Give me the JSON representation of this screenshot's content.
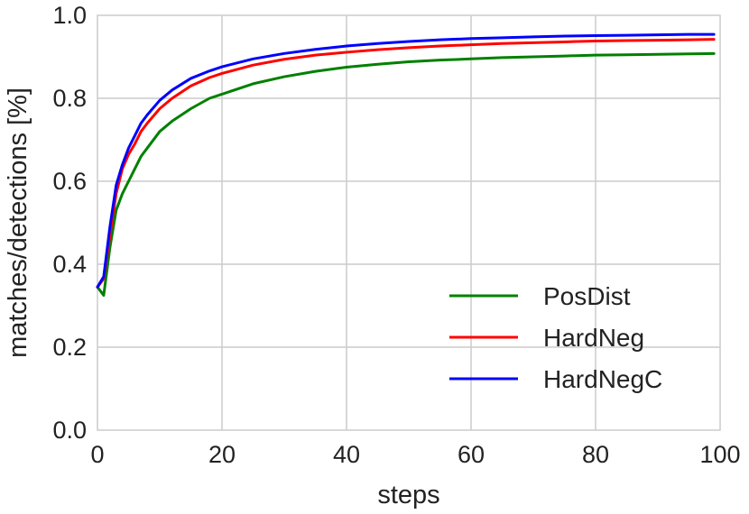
{
  "chart_data": {
    "type": "line",
    "title": "",
    "xlabel": "steps",
    "ylabel": "matches/detections [%]",
    "xlim": [
      0,
      100
    ],
    "ylim": [
      0.0,
      1.0
    ],
    "x_ticks": [
      0,
      20,
      40,
      60,
      80,
      100
    ],
    "y_ticks": [
      0.0,
      0.2,
      0.4,
      0.6,
      0.8,
      1.0
    ],
    "x_tick_labels": [
      "0",
      "20",
      "40",
      "60",
      "80",
      "100"
    ],
    "y_tick_labels": [
      "0.0",
      "0.2",
      "0.4",
      "0.6",
      "0.8",
      "1.0"
    ],
    "grid": true,
    "legend_position": "bottom-right",
    "x": [
      0,
      1,
      2,
      3,
      4,
      5,
      6,
      7,
      8,
      10,
      12,
      15,
      18,
      20,
      25,
      30,
      35,
      40,
      45,
      50,
      55,
      60,
      65,
      70,
      75,
      80,
      85,
      90,
      95,
      99
    ],
    "series": [
      {
        "name": "PosDist",
        "color": "#008000",
        "values": [
          0.345,
          0.325,
          0.44,
          0.53,
          0.57,
          0.6,
          0.63,
          0.66,
          0.68,
          0.72,
          0.745,
          0.775,
          0.8,
          0.81,
          0.835,
          0.852,
          0.865,
          0.875,
          0.882,
          0.888,
          0.892,
          0.895,
          0.898,
          0.9,
          0.902,
          0.904,
          0.905,
          0.906,
          0.907,
          0.908
        ]
      },
      {
        "name": "HardNeg",
        "color": "#ff0000",
        "values": [
          0.345,
          0.365,
          0.47,
          0.57,
          0.63,
          0.665,
          0.69,
          0.72,
          0.74,
          0.775,
          0.8,
          0.83,
          0.85,
          0.86,
          0.88,
          0.894,
          0.904,
          0.911,
          0.917,
          0.922,
          0.926,
          0.929,
          0.932,
          0.934,
          0.936,
          0.938,
          0.939,
          0.94,
          0.941,
          0.942
        ]
      },
      {
        "name": "HardNegC",
        "color": "#0000ff",
        "values": [
          0.345,
          0.37,
          0.49,
          0.59,
          0.64,
          0.68,
          0.71,
          0.74,
          0.76,
          0.795,
          0.82,
          0.848,
          0.866,
          0.876,
          0.895,
          0.908,
          0.918,
          0.926,
          0.932,
          0.937,
          0.941,
          0.944,
          0.946,
          0.948,
          0.95,
          0.951,
          0.952,
          0.953,
          0.954,
          0.954
        ]
      }
    ]
  }
}
